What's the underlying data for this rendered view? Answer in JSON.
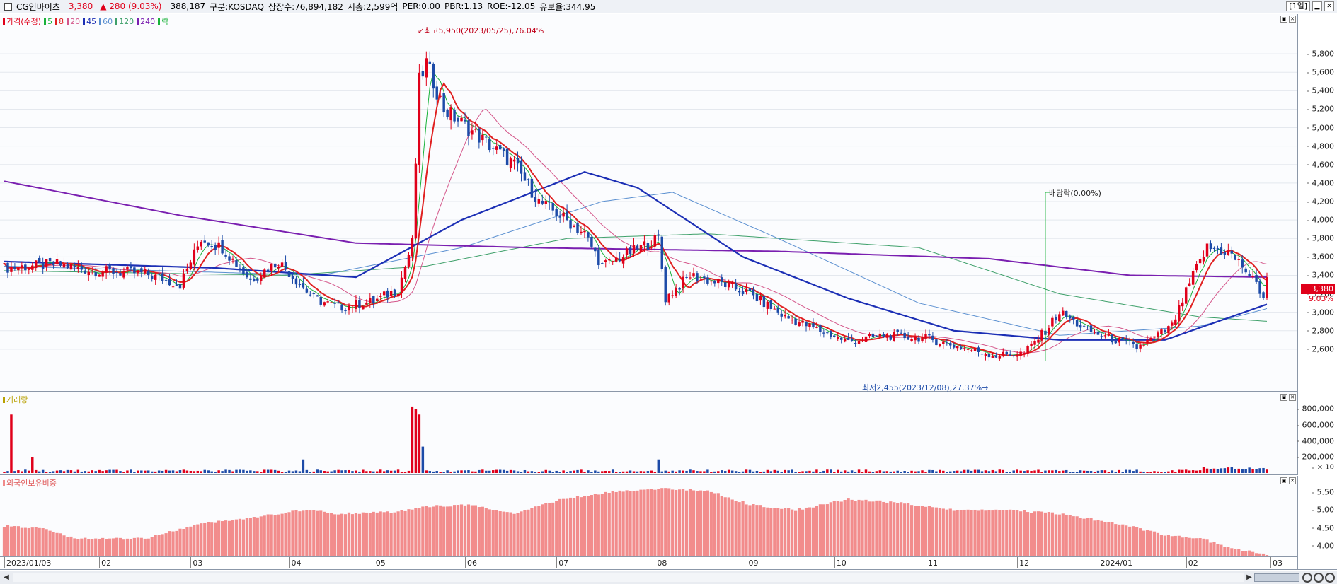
{
  "info": {
    "name": "CG인바이츠",
    "price": "3,380",
    "change_arrow": "▲",
    "change": "280",
    "change_pct": "(9.03%)",
    "volume": "388,187",
    "market": "구분:KOSDAQ",
    "shares": "상장수:76,894,182",
    "cap": "시총:2,599억",
    "per": "PER:0.00",
    "pbr": "PBR:1.13",
    "roe": "ROE:-12.05",
    "reserve": "유보율:344.95",
    "period": "[1일]"
  },
  "legend": {
    "price_label": "가격(수정)",
    "ma": [
      {
        "label": "5",
        "color": "#19b23a"
      },
      {
        "label": "8",
        "color": "#e02020"
      },
      {
        "label": "20",
        "color": "#d4568a"
      },
      {
        "label": "45",
        "color": "#1c2fb5"
      },
      {
        "label": "60",
        "color": "#5a8fd0"
      },
      {
        "label": "120",
        "color": "#3ea06a"
      },
      {
        "label": "240",
        "color": "#7a1fb0"
      }
    ],
    "ex_label": "락",
    "volume_label": "거래량",
    "foreign_label": "외국인보유비중"
  },
  "price_axis": [
    "5,800",
    "5,600",
    "5,400",
    "5,200",
    "5,000",
    "4,800",
    "4,600",
    "4,400",
    "4,200",
    "4,000",
    "3,800",
    "3,600",
    "3,400",
    "3,200",
    "3,000",
    "2,800",
    "2,600"
  ],
  "volume_axis": [
    "800,000",
    "600,000",
    "400,000",
    "200,000"
  ],
  "volume_unit": "× 10",
  "foreign_axis": [
    "5.50",
    "5.00",
    "4.50",
    "4.00"
  ],
  "current_tag": {
    "price": "3,380",
    "pct": "9.03%"
  },
  "annotations": {
    "high": "최고5,950(2023/05/25),76.04%",
    "low": "최저2,455(2023/12/08),27.37%",
    "dividend": "배당락(0.00%)"
  },
  "x_axis": [
    "2023/01/03",
    "02",
    "03",
    "04",
    "05",
    "06",
    "07",
    "08",
    "09",
    "10",
    "11",
    "12",
    "2024/01",
    "02",
    "03"
  ],
  "chart_data": {
    "type": "candlestick",
    "price_anchors": [
      [
        0,
        3480
      ],
      [
        15,
        3520
      ],
      [
        25,
        3450
      ],
      [
        40,
        3420
      ],
      [
        50,
        3300
      ],
      [
        56,
        3800
      ],
      [
        62,
        3700
      ],
      [
        70,
        3350
      ],
      [
        78,
        3550
      ],
      [
        88,
        3150
      ],
      [
        95,
        3050
      ],
      [
        105,
        3120
      ],
      [
        112,
        3250
      ],
      [
        116,
        3750
      ],
      [
        118,
        5500
      ],
      [
        120,
        5700
      ],
      [
        125,
        5200
      ],
      [
        135,
        4900
      ],
      [
        145,
        4600
      ],
      [
        152,
        4200
      ],
      [
        158,
        4050
      ],
      [
        165,
        3850
      ],
      [
        170,
        3500
      ],
      [
        178,
        3650
      ],
      [
        186,
        3800
      ],
      [
        188,
        3150
      ],
      [
        195,
        3400
      ],
      [
        205,
        3300
      ],
      [
        212,
        3200
      ],
      [
        222,
        2950
      ],
      [
        232,
        2800
      ],
      [
        240,
        2680
      ],
      [
        250,
        2750
      ],
      [
        262,
        2720
      ],
      [
        272,
        2620
      ],
      [
        282,
        2530
      ],
      [
        290,
        2560
      ],
      [
        296,
        2800
      ],
      [
        300,
        3000
      ],
      [
        308,
        2800
      ],
      [
        316,
        2700
      ],
      [
        322,
        2620
      ],
      [
        326,
        2700
      ],
      [
        332,
        2850
      ],
      [
        338,
        3400
      ],
      [
        342,
        3700
      ],
      [
        348,
        3650
      ],
      [
        352,
        3500
      ],
      [
        356,
        3300
      ],
      [
        359,
        3100
      ],
      [
        360,
        3380
      ]
    ],
    "volume_spikes": [
      [
        2,
        730000
      ],
      [
        8,
        200000
      ],
      [
        85,
        170000
      ],
      [
        116,
        830000
      ],
      [
        117,
        800000
      ],
      [
        118,
        730000
      ],
      [
        119,
        330000
      ],
      [
        186,
        170000
      ]
    ],
    "foreign_anchors": [
      [
        0,
        4.55
      ],
      [
        10,
        4.5
      ],
      [
        20,
        4.2
      ],
      [
        40,
        4.2
      ],
      [
        55,
        4.6
      ],
      [
        75,
        4.85
      ],
      [
        85,
        5.0
      ],
      [
        95,
        4.9
      ],
      [
        112,
        4.95
      ],
      [
        120,
        5.1
      ],
      [
        132,
        5.15
      ],
      [
        145,
        4.9
      ],
      [
        158,
        5.3
      ],
      [
        172,
        5.5
      ],
      [
        186,
        5.6
      ],
      [
        200,
        5.55
      ],
      [
        212,
        5.15
      ],
      [
        225,
        5.0
      ],
      [
        240,
        5.3
      ],
      [
        255,
        5.2
      ],
      [
        270,
        5.0
      ],
      [
        285,
        5.0
      ],
      [
        300,
        4.9
      ],
      [
        318,
        4.6
      ],
      [
        330,
        4.3
      ],
      [
        340,
        4.2
      ],
      [
        350,
        3.9
      ],
      [
        360,
        3.75
      ]
    ],
    "ma45_shape": [
      [
        0,
        3550
      ],
      [
        60,
        3480
      ],
      [
        100,
        3380
      ],
      [
        130,
        4000
      ],
      [
        165,
        4520
      ],
      [
        180,
        4350
      ],
      [
        210,
        3600
      ],
      [
        240,
        3150
      ],
      [
        270,
        2800
      ],
      [
        300,
        2700
      ],
      [
        330,
        2700
      ],
      [
        345,
        2900
      ],
      [
        360,
        3100
      ]
    ],
    "ma240_shape": [
      [
        0,
        4420
      ],
      [
        50,
        4050
      ],
      [
        100,
        3750
      ],
      [
        150,
        3700
      ],
      [
        220,
        3660
      ],
      [
        280,
        3580
      ],
      [
        320,
        3400
      ],
      [
        360,
        3380
      ]
    ],
    "ma120_shape": [
      [
        0,
        3450
      ],
      [
        80,
        3400
      ],
      [
        120,
        3500
      ],
      [
        160,
        3800
      ],
      [
        200,
        3850
      ],
      [
        260,
        3700
      ],
      [
        300,
        3200
      ],
      [
        340,
        2950
      ],
      [
        360,
        2900
      ]
    ],
    "ma60_shape": [
      [
        0,
        3500
      ],
      [
        90,
        3400
      ],
      [
        130,
        3700
      ],
      [
        170,
        4200
      ],
      [
        190,
        4300
      ],
      [
        220,
        3800
      ],
      [
        260,
        3100
      ],
      [
        300,
        2750
      ],
      [
        340,
        2850
      ],
      [
        360,
        3050
      ]
    ],
    "y_range": [
      2400,
      6000
    ],
    "bars": 360
  }
}
